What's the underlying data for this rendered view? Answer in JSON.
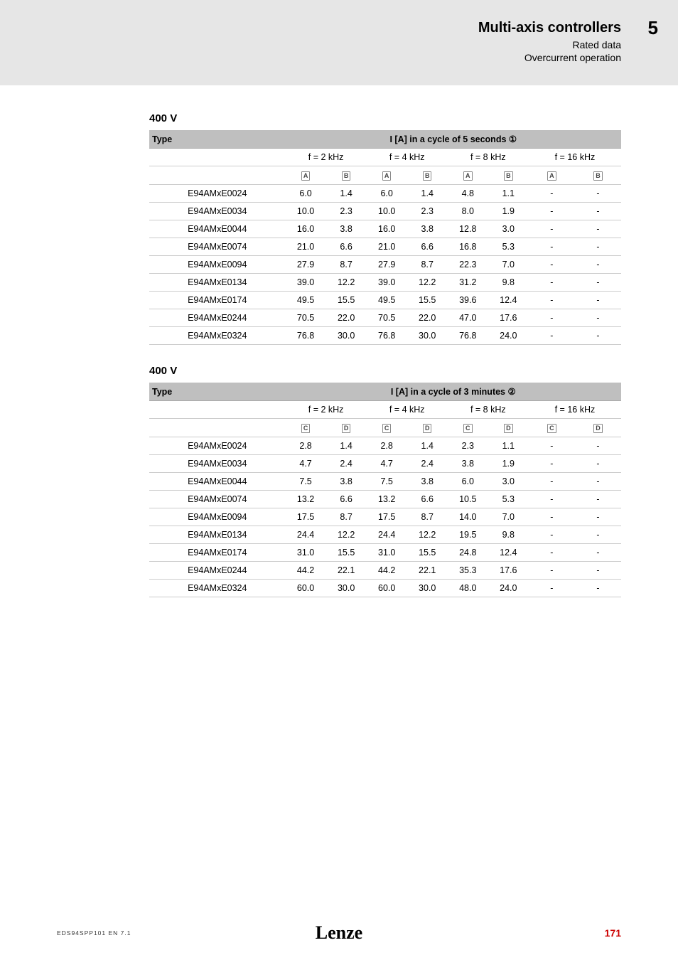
{
  "header": {
    "title": "Multi-axis controllers",
    "sub1": "Rated data",
    "sub2": "Overcurrent operation",
    "chapter": "5"
  },
  "tables": [
    {
      "section": "400 V",
      "table_title": "I [A] in a cycle of 5 seconds ①",
      "freq_cols": [
        "f = 2 kHz",
        "f = 4 kHz",
        "f = 8 kHz",
        "f = 16 kHz"
      ],
      "sub_labels": [
        "A",
        "B"
      ],
      "type_header": "Type",
      "rows": [
        {
          "type": "E94AMxE0024",
          "v": [
            "6.0",
            "1.4",
            "6.0",
            "1.4",
            "4.8",
            "1.1",
            "-",
            "-"
          ]
        },
        {
          "type": "E94AMxE0034",
          "v": [
            "10.0",
            "2.3",
            "10.0",
            "2.3",
            "8.0",
            "1.9",
            "-",
            "-"
          ]
        },
        {
          "type": "E94AMxE0044",
          "v": [
            "16.0",
            "3.8",
            "16.0",
            "3.8",
            "12.8",
            "3.0",
            "-",
            "-"
          ]
        },
        {
          "type": "E94AMxE0074",
          "v": [
            "21.0",
            "6.6",
            "21.0",
            "6.6",
            "16.8",
            "5.3",
            "-",
            "-"
          ]
        },
        {
          "type": "E94AMxE0094",
          "v": [
            "27.9",
            "8.7",
            "27.9",
            "8.7",
            "22.3",
            "7.0",
            "-",
            "-"
          ]
        },
        {
          "type": "E94AMxE0134",
          "v": [
            "39.0",
            "12.2",
            "39.0",
            "12.2",
            "31.2",
            "9.8",
            "-",
            "-"
          ]
        },
        {
          "type": "E94AMxE0174",
          "v": [
            "49.5",
            "15.5",
            "49.5",
            "15.5",
            "39.6",
            "12.4",
            "-",
            "-"
          ]
        },
        {
          "type": "E94AMxE0244",
          "v": [
            "70.5",
            "22.0",
            "70.5",
            "22.0",
            "47.0",
            "17.6",
            "-",
            "-"
          ]
        },
        {
          "type": "E94AMxE0324",
          "v": [
            "76.8",
            "30.0",
            "76.8",
            "30.0",
            "76.8",
            "24.0",
            "-",
            "-"
          ]
        }
      ]
    },
    {
      "section": "400 V",
      "table_title": "I [A] in a cycle of 3 minutes ②",
      "freq_cols": [
        "f = 2 kHz",
        "f = 4 kHz",
        "f = 8 kHz",
        "f = 16 kHz"
      ],
      "sub_labels": [
        "C",
        "D"
      ],
      "type_header": "Type",
      "rows": [
        {
          "type": "E94AMxE0024",
          "v": [
            "2.8",
            "1.4",
            "2.8",
            "1.4",
            "2.3",
            "1.1",
            "-",
            "-"
          ]
        },
        {
          "type": "E94AMxE0034",
          "v": [
            "4.7",
            "2.4",
            "4.7",
            "2.4",
            "3.8",
            "1.9",
            "-",
            "-"
          ]
        },
        {
          "type": "E94AMxE0044",
          "v": [
            "7.5",
            "3.8",
            "7.5",
            "3.8",
            "6.0",
            "3.0",
            "-",
            "-"
          ]
        },
        {
          "type": "E94AMxE0074",
          "v": [
            "13.2",
            "6.6",
            "13.2",
            "6.6",
            "10.5",
            "5.3",
            "-",
            "-"
          ]
        },
        {
          "type": "E94AMxE0094",
          "v": [
            "17.5",
            "8.7",
            "17.5",
            "8.7",
            "14.0",
            "7.0",
            "-",
            "-"
          ]
        },
        {
          "type": "E94AMxE0134",
          "v": [
            "24.4",
            "12.2",
            "24.4",
            "12.2",
            "19.5",
            "9.8",
            "-",
            "-"
          ]
        },
        {
          "type": "E94AMxE0174",
          "v": [
            "31.0",
            "15.5",
            "31.0",
            "15.5",
            "24.8",
            "12.4",
            "-",
            "-"
          ]
        },
        {
          "type": "E94AMxE0244",
          "v": [
            "44.2",
            "22.1",
            "44.2",
            "22.1",
            "35.3",
            "17.6",
            "-",
            "-"
          ]
        },
        {
          "type": "E94AMxE0324",
          "v": [
            "60.0",
            "30.0",
            "60.0",
            "30.0",
            "48.0",
            "24.0",
            "-",
            "-"
          ]
        }
      ]
    }
  ],
  "footer": {
    "doc": "EDS94SPP101  EN  7.1",
    "brand": "Lenze",
    "page": "171"
  },
  "style": {
    "hdr_bg": "#bfbfbf",
    "band_bg": "#e6e6e6",
    "border_color": "#cccccc",
    "pnum_color": "#c00000"
  }
}
